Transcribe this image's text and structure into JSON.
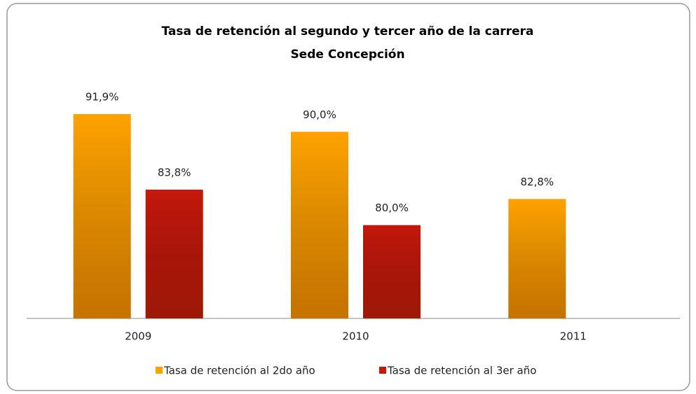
{
  "chart_data": {
    "type": "bar",
    "title": "Tasa de retención al segundo y tercer año de la carrera",
    "subtitle": "Sede Concepción",
    "categories": [
      "2009",
      "2010",
      "2011"
    ],
    "series": [
      {
        "name": "Tasa de retención al 2do año",
        "color": "#ffa200",
        "values": [
          91.9,
          90.0,
          82.8
        ],
        "value_labels": [
          "91,9%",
          "90,0%",
          "82,8%"
        ]
      },
      {
        "name": "Tasa de retención al 3er año",
        "color": "#c4180b",
        "values": [
          83.8,
          80.0,
          null
        ],
        "value_labels": [
          "83,8%",
          "80,0%",
          null
        ]
      }
    ],
    "ylim": [
      70,
      100
    ],
    "legend": "bottom"
  }
}
